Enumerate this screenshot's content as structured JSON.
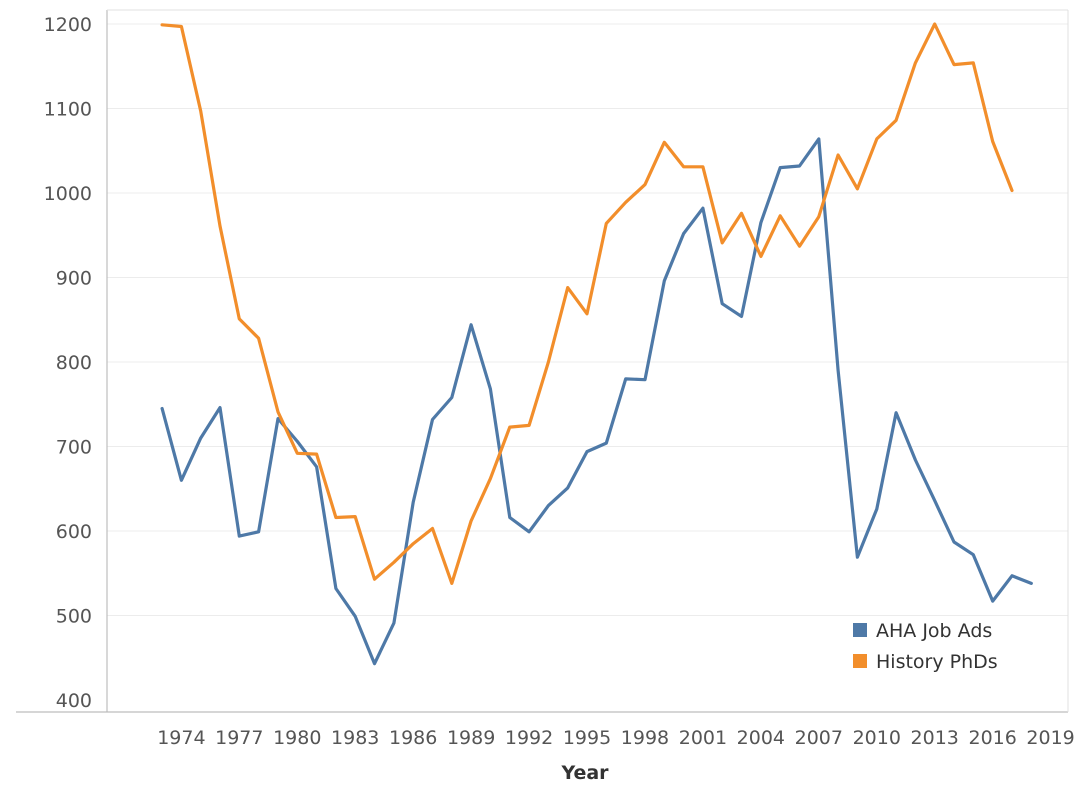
{
  "chart_data": {
    "type": "line",
    "title": "",
    "xlabel": "Year",
    "ylabel": "",
    "x": [
      1973,
      1974,
      1975,
      1976,
      1977,
      1978,
      1979,
      1980,
      1981,
      1982,
      1983,
      1984,
      1985,
      1986,
      1987,
      1988,
      1989,
      1990,
      1991,
      1992,
      1993,
      1994,
      1995,
      1996,
      1997,
      1998,
      1999,
      2000,
      2001,
      2002,
      2003,
      2004,
      2005,
      2006,
      2007,
      2008,
      2009,
      2010,
      2011,
      2012,
      2013,
      2014,
      2015,
      2016,
      2017,
      2018
    ],
    "series": [
      {
        "name": "AHA Job Ads",
        "color": "#4E79A7",
        "values": [
          745,
          660,
          710,
          746,
          594,
          599,
          733,
          706,
          676,
          532,
          499,
          443,
          491,
          634,
          732,
          758,
          844,
          768,
          616,
          599,
          630,
          651,
          694,
          704,
          780,
          779,
          896,
          952,
          982,
          869,
          854,
          965,
          1030,
          1032,
          1064,
          790,
          569,
          626,
          740,
          684,
          636,
          587,
          572,
          517,
          547,
          538
        ]
      },
      {
        "name": "History PhDs",
        "color": "#F28E2B",
        "values": [
          1199,
          1197,
          1097,
          961,
          851,
          828,
          741,
          692,
          691,
          616,
          617,
          543,
          563,
          585,
          603,
          538,
          612,
          662,
          723,
          725,
          800,
          888,
          857,
          964,
          989,
          1010,
          1060,
          1031,
          1031,
          941,
          976,
          925,
          973,
          937,
          972,
          1045,
          1005,
          1064,
          1086,
          1154,
          1200,
          1152,
          1154,
          1061,
          1003,
          null
        ]
      }
    ],
    "xticks": [
      "1974",
      "1977",
      "1980",
      "1983",
      "1986",
      "1989",
      "1992",
      "1995",
      "1998",
      "2001",
      "2004",
      "2007",
      "2010",
      "2013",
      "2016",
      "2019"
    ],
    "yticks": [
      "1200",
      "1100",
      "1000",
      "900",
      "800",
      "700",
      "600",
      "500",
      "400"
    ],
    "ylim": [
      400,
      1200
    ],
    "xlim": [
      1970.15,
      2019.9
    ],
    "grid": true,
    "legend_position": "bottom-right",
    "legend": [
      "AHA Job Ads",
      "History PhDs"
    ]
  }
}
